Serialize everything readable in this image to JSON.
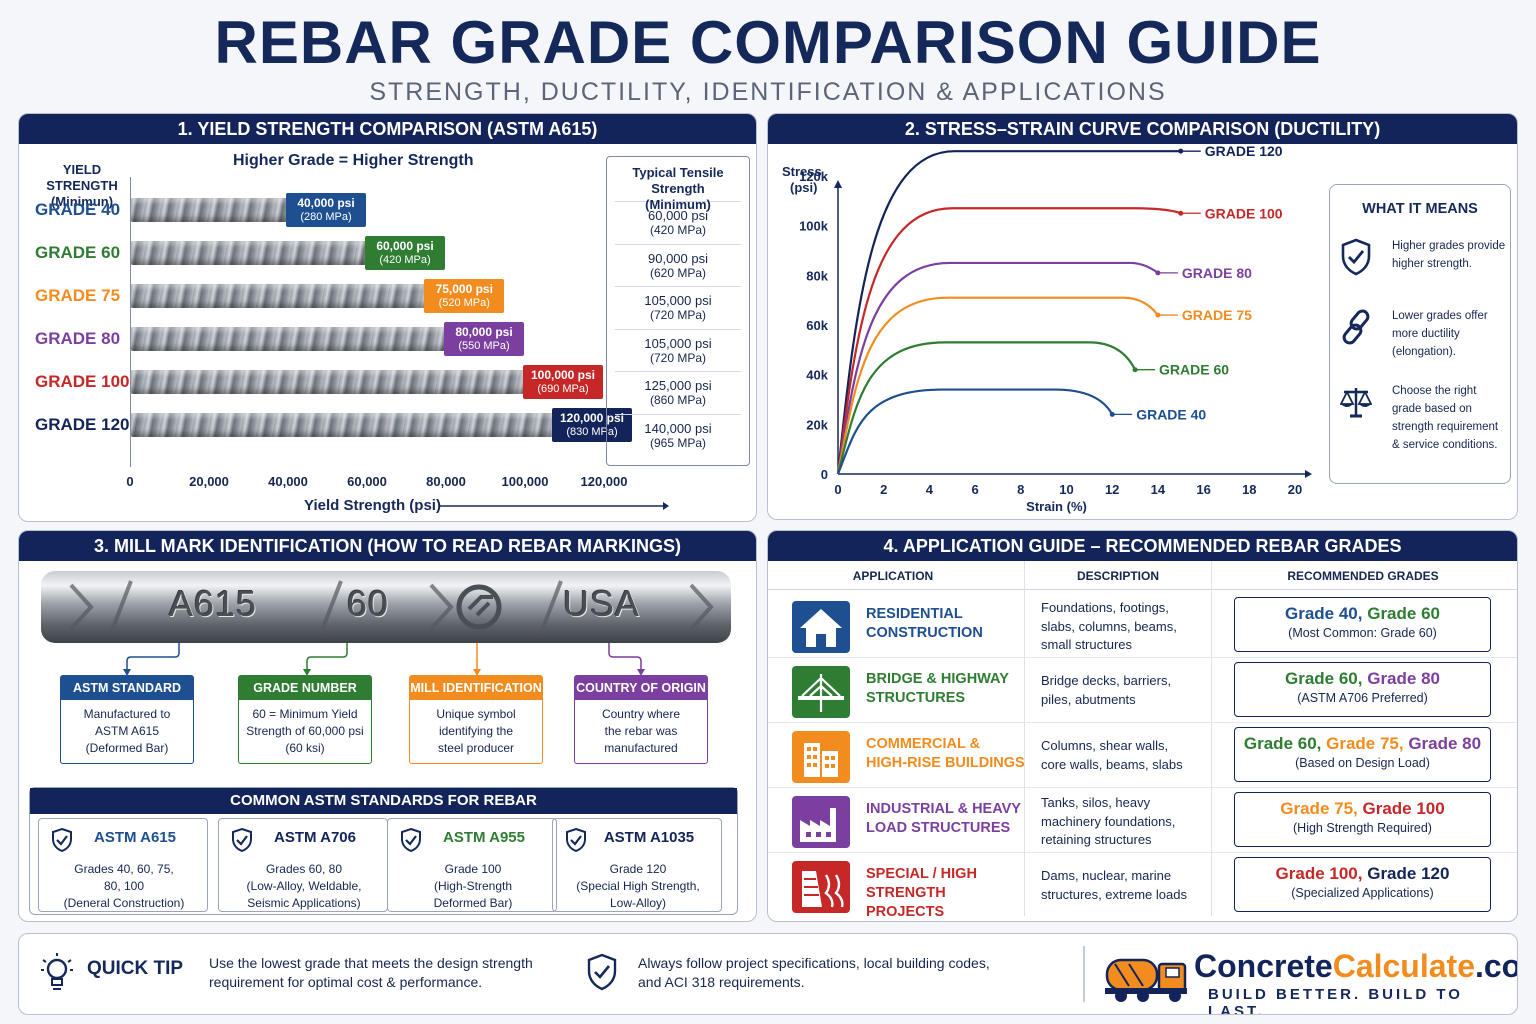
{
  "header": {
    "title": "REBAR GRADE COMPARISON GUIDE",
    "subtitle": "STRENGTH, DUCTILITY, IDENTIFICATION & APPLICATIONS"
  },
  "panel1": {
    "heading": "1. YIELD STRENGTH COMPARISON (ASTM A615)",
    "ylabel_line1": "YIELD STRENGTH",
    "ylabel_line2": "(Minimun)",
    "tagline": "Higher Grade = Higher Strength",
    "tensile_head_line1": "Typical Tensile Strength",
    "tensile_head_line2": "(Minimum)",
    "xlabel": "Yield Strength (psi)"
  },
  "chart_data": [
    {
      "type": "bar",
      "orientation": "horizontal",
      "categories": [
        "GRADE 40",
        "GRADE 60",
        "GRADE 75",
        "GRADE 80",
        "GRADE 100",
        "GRADE 120"
      ],
      "values": [
        40000,
        60000,
        75000,
        80000,
        100000,
        120000
      ],
      "value_labels": [
        "40,000 psi",
        "60,000 psi",
        "75,000 psi",
        "80,000 psi",
        "100,000 psi",
        "120,000 psi"
      ],
      "value_labels_mpa": [
        "(280 MPa)",
        "(420 MPa)",
        "(520 MPa)",
        "(550 MPa)",
        "(690 MPa)",
        "(830 MPa)"
      ],
      "colors": [
        "#1d4f91",
        "#2e7d32",
        "#f28c1e",
        "#7b3fa0",
        "#c62828",
        "#13245a"
      ],
      "tensile_psi": [
        "60,000 psi",
        "90,000 psi",
        "105,000 psi",
        "105,000 psi",
        "125,000 psi",
        "140,000 psi"
      ],
      "tensile_mpa": [
        "(420 MPa)",
        "(620 MPa)",
        "(720 MPa)",
        "(720 MPa)",
        "(860 MPa)",
        "(965 MPa)"
      ],
      "xlim": [
        0,
        120000
      ],
      "xticks": [
        "0",
        "20,000",
        "40,000",
        "60,000",
        "80,000",
        "100,000",
        "120,000"
      ],
      "xlabel": "Yield Strength (psi)"
    },
    {
      "type": "line",
      "title": "2. STRESS–STRAIN CURVE COMPARISON (DUCTILITY)",
      "xlabel": "Strain (%)",
      "ylabel_line1": "Stress",
      "ylabel_line2": "(psi)",
      "xlim": [
        0,
        20
      ],
      "ylim": [
        0,
        120000
      ],
      "xticks": [
        "0",
        "2",
        "4",
        "6",
        "8",
        "10",
        "12",
        "14",
        "16",
        "18",
        "20"
      ],
      "yticks": [
        "0",
        "20k",
        "40k",
        "60k",
        "80k",
        "100k",
        "120k"
      ],
      "series": [
        {
          "name": "GRADE 120",
          "color": "#13245a",
          "plateau": 130000,
          "plateau_end": 13,
          "end": [
            15,
            130000
          ]
        },
        {
          "name": "GRADE 100",
          "color": "#c62828",
          "plateau": 107000,
          "plateau_end": 13,
          "end": [
            15,
            105000
          ]
        },
        {
          "name": "GRADE 80",
          "color": "#7b3fa0",
          "plateau": 85000,
          "plateau_end": 12.8,
          "end": [
            14,
            81000
          ]
        },
        {
          "name": "GRADE 75",
          "color": "#f28c1e",
          "plateau": 71000,
          "plateau_end": 12.5,
          "end": [
            14,
            64000
          ]
        },
        {
          "name": "GRADE 60",
          "color": "#2e7d32",
          "plateau": 53000,
          "plateau_end": 11,
          "end": [
            13,
            42000
          ]
        },
        {
          "name": "GRADE 40",
          "color": "#1d4f91",
          "plateau": 34000,
          "plateau_end": 9.5,
          "end": [
            12,
            24000
          ]
        }
      ]
    }
  ],
  "panel2": {
    "means_title": "WHAT IT MEANS",
    "means": [
      {
        "icon": "shield-check-icon",
        "text": "Higher grades provide higher strength."
      },
      {
        "icon": "chain-link-icon",
        "text": "Lower grades offer more ductility (elongation)."
      },
      {
        "icon": "scale-icon",
        "text": "Choose the right grade based on strength requirement & service conditions."
      }
    ]
  },
  "panel3": {
    "heading": "3. MILL MARK IDENTIFICATION (HOW TO READ REBAR MARKINGS)",
    "rod_marks": [
      "A615",
      "60",
      "USA"
    ],
    "cards": [
      {
        "title": "ASTM STANDARD",
        "body": [
          "Manufactured to",
          "ASTM A615",
          "(Deformed Bar)"
        ],
        "color": "#1d4f91"
      },
      {
        "title": "GRADE NUMBER",
        "body": [
          "60 = Minimum Yield",
          "Strength of 60,000 psi",
          "(60 ksi)"
        ],
        "color": "#2e7d32"
      },
      {
        "title": "MILL IDENTIFICATION",
        "body": [
          "Unique symbol",
          "identifying the",
          "steel producer"
        ],
        "color": "#f28c1e"
      },
      {
        "title": "COUNTRY OF ORIGIN",
        "body": [
          "Country where",
          "the rebar was",
          "manufactured"
        ],
        "color": "#7b3fa0"
      }
    ],
    "standards_heading": "COMMON ASTM STANDARDS FOR REBAR",
    "standards": [
      {
        "name": "ASTM A615",
        "color": "#1d4f91",
        "body": [
          "Grades 40, 60, 75,",
          "80, 100",
          "(Deneral Construction)"
        ]
      },
      {
        "name": "ASTM A706",
        "color": "#13245a",
        "body": [
          "Grades 60, 80",
          "(Low-Alloy, Weldable,",
          "Seismic Applications)"
        ]
      },
      {
        "name": "ASTM A955",
        "color": "#2e7d32",
        "body": [
          "Grade 100",
          "(High-Strength",
          "Deformed Bar)"
        ]
      },
      {
        "name": "ASTM A1035",
        "color": "#13245a",
        "body": [
          "Grade 120",
          "(Special High Strength,",
          "Low-Alloy)"
        ]
      }
    ]
  },
  "panel4": {
    "heading": "4. APPLICATION GUIDE – RECOMMENDED REBAR GRADES",
    "columns": [
      "APPLICATION",
      "DESCRIPTION",
      "RECOMMENDED GRADES"
    ],
    "rows": [
      {
        "icon": "house-icon",
        "icon_color": "#1d4f91",
        "name": [
          "RESIDENTIAL",
          "CONSTRUCTION"
        ],
        "name_color": "#1d4f91",
        "desc": [
          "Foundations, footings,",
          "slabs, columns, beams,",
          "small structures"
        ],
        "grades": [
          {
            "text": "Grade 40",
            "color": "#1d4f91"
          },
          {
            "text": "Grade 60",
            "color": "#2e7d32"
          }
        ],
        "note": "(Most Common: Grade 60)"
      },
      {
        "icon": "bridge-icon",
        "icon_color": "#2e7d32",
        "name": [
          "BRIDGE & HIGHWAY",
          "STRUCTURES"
        ],
        "name_color": "#2e7d32",
        "desc": [
          "Bridge decks, barriers,",
          "piles, abutments"
        ],
        "grades": [
          {
            "text": "Grade 60",
            "color": "#2e7d32"
          },
          {
            "text": "Grade 80",
            "color": "#7b3fa0"
          }
        ],
        "note": "(ASTM A706 Preferred)"
      },
      {
        "icon": "building-icon",
        "icon_color": "#f28c1e",
        "name": [
          "COMMERCIAL &",
          "HIGH-RISE BUILDINGS"
        ],
        "name_color": "#f28c1e",
        "desc": [
          "Columns, shear walls,",
          "core walls, beams, slabs"
        ],
        "grades": [
          {
            "text": "Grade 60",
            "color": "#2e7d32"
          },
          {
            "text": "Grade 75",
            "color": "#f28c1e"
          },
          {
            "text": "Grade 80",
            "color": "#7b3fa0"
          }
        ],
        "note": "(Based on Design Load)"
      },
      {
        "icon": "factory-icon",
        "icon_color": "#7b3fa0",
        "name": [
          "INDUSTRIAL & HEAVY",
          "LOAD STRUCTURES"
        ],
        "name_color": "#7b3fa0",
        "desc": [
          "Tanks, silos, heavy",
          "machinery foundations,",
          "retaining structures"
        ],
        "grades": [
          {
            "text": "Grade 75",
            "color": "#f28c1e"
          },
          {
            "text": "Grade 100",
            "color": "#c62828"
          }
        ],
        "note": "(High Strength Required)"
      },
      {
        "icon": "dam-icon",
        "icon_color": "#c62828",
        "name": [
          "SPECIAL / HIGH",
          "STRENGTH PROJECTS"
        ],
        "name_color": "#c62828",
        "desc": [
          "Dams, nuclear, marine",
          "structures, extreme loads"
        ],
        "grades": [
          {
            "text": "Grade 100",
            "color": "#c62828"
          },
          {
            "text": "Grade 120",
            "color": "#13245a"
          }
        ],
        "note": "(Specialized Applications)"
      }
    ]
  },
  "tip": {
    "title": "QUICK TIP",
    "text1": [
      "Use the lowest grade that meets the design strength",
      "requirement for optimal cost & performance."
    ],
    "text2": [
      "Always follow project specifications, local building codes,",
      "and ACI 318 requirements."
    ],
    "brand_part1": "Concrete",
    "brand_part2": "Calculate",
    "brand_part3": ".com",
    "tagline": "BUILD BETTER. BUILD TO LAST.",
    "colors": {
      "navy": "#13245a",
      "orange": "#f28c1e"
    }
  }
}
